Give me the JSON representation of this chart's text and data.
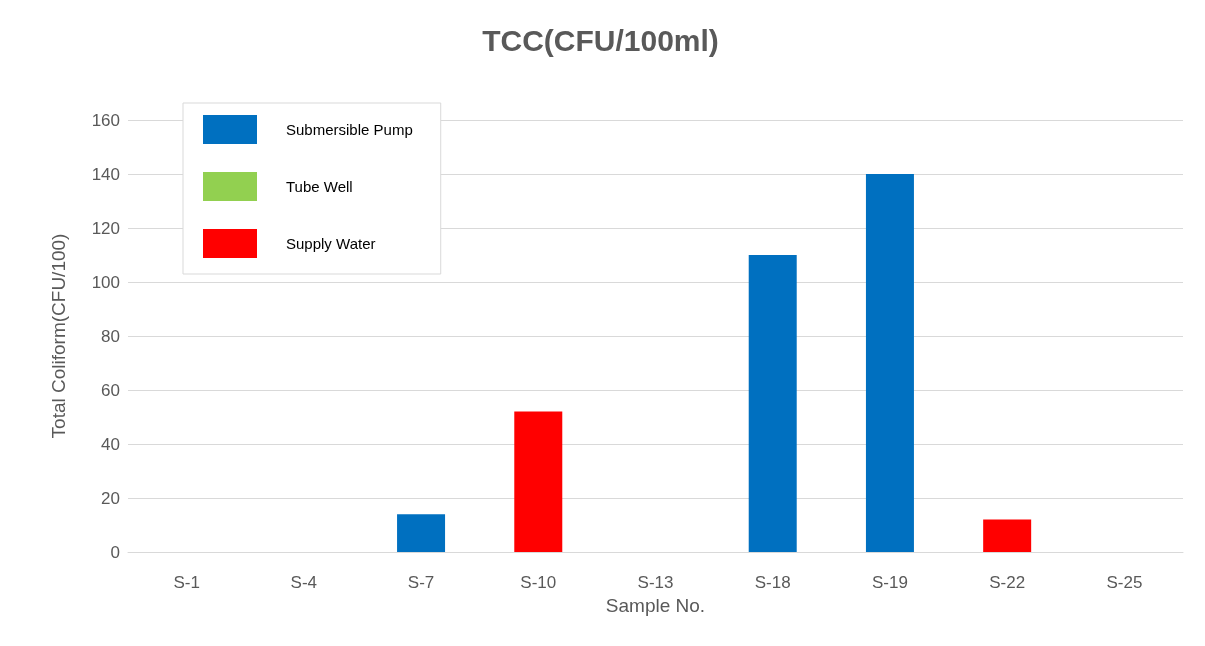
{
  "chart_data": {
    "type": "bar",
    "title": "TCC(CFU/100ml)",
    "xlabel": "Sample No.",
    "ylabel": "Total Coliform(CFU/100)",
    "categories": [
      "S-1",
      "S-4",
      "S-7",
      "S-10",
      "S-13",
      "S-18",
      "S-19",
      "S-22",
      "S-25"
    ],
    "stacked": true,
    "series": [
      {
        "name": "Submersible Pump",
        "color": "#0070c0",
        "values": [
          null,
          null,
          14,
          null,
          null,
          110,
          140,
          null,
          null
        ]
      },
      {
        "name": "Tube Well",
        "color": "#92d050",
        "values": [
          0,
          0,
          null,
          null,
          0,
          null,
          null,
          null,
          0
        ]
      },
      {
        "name": "Supply Water",
        "color": "#ff0000",
        "values": [
          null,
          null,
          null,
          52,
          null,
          null,
          null,
          12,
          null
        ]
      }
    ],
    "ylim": [
      0,
      160
    ],
    "yticks": [
      0,
      20,
      40,
      60,
      80,
      100,
      120,
      140,
      160
    ],
    "grid": "y",
    "legend": "top left"
  }
}
